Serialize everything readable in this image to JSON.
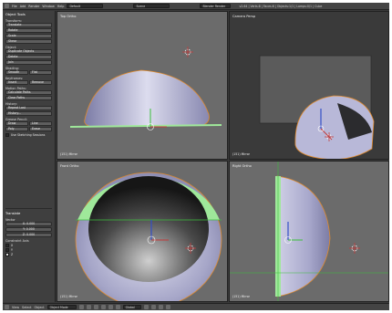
{
  "topbar": {
    "menus": [
      "File",
      "Add",
      "Render",
      "Window",
      "Help"
    ],
    "screen": "Default",
    "scene": "Scene",
    "render_engine": "Blender Render",
    "stats": "v2.64 | Verts:8 | Faces:6 | Objects:1/1 | Lamps:0/1 | Cube"
  },
  "toolshelf": {
    "title": "Object Tools",
    "transform_label": "Transform:",
    "transform_buttons": [
      "Translate",
      "Rotate",
      "Scale",
      "Shear"
    ],
    "object_label": "Object:",
    "object_buttons": [
      "Duplicate Objects",
      "Delete",
      "Join"
    ],
    "shading_label": "Shading:",
    "shading_buttons": [
      "Smooth",
      "Flat"
    ],
    "keyframes_label": "Keyframes:",
    "keyframe_buttons": [
      "Insert",
      "Remove"
    ],
    "motion_paths_label": "Motion Paths:",
    "motion_buttons": [
      "Calculate Paths",
      "Clear Paths"
    ],
    "history_label": "History:",
    "history_buttons": [
      "Repeat Last",
      "History..."
    ],
    "grease_pencil_label": "Grease Pencil:",
    "grease_buttons": [
      "Draw",
      "Line",
      "Poly",
      "Erase"
    ],
    "use_sketching": "Use Sketching Sessions",
    "operator_title": "Translate",
    "vector_label": "Vector",
    "vector_values": [
      "X: 0.000",
      "Y: 0.000",
      "Z: 0.000"
    ],
    "constraint_label": "Constraint Axis",
    "axes": [
      "X",
      "Y",
      "Z"
    ]
  },
  "viewports": {
    "top_left": {
      "label": "Top Ortho",
      "footer": "(151) Mirror"
    },
    "top_right": {
      "label": "Camera Persp",
      "footer": "(151) Mirror"
    },
    "bottom_left": {
      "label": "Front Ortho",
      "footer": "(151) Mirror"
    },
    "bottom_right": {
      "label": "Right Ortho",
      "footer": "(151) Mirror"
    }
  },
  "bottombar": {
    "menus": [
      "View",
      "Select",
      "Object"
    ],
    "mode": "Object Mode",
    "orientation": "Global"
  },
  "colors": {
    "mesh": "#a8a8d0",
    "mesh_dark": "#1e1e1e",
    "selected_outline": "#e08a2c",
    "green_band": "#9fe89a",
    "x_axis": "#c23a3a",
    "y_axis": "#3cbf3c",
    "z_axis": "#3450c8"
  }
}
